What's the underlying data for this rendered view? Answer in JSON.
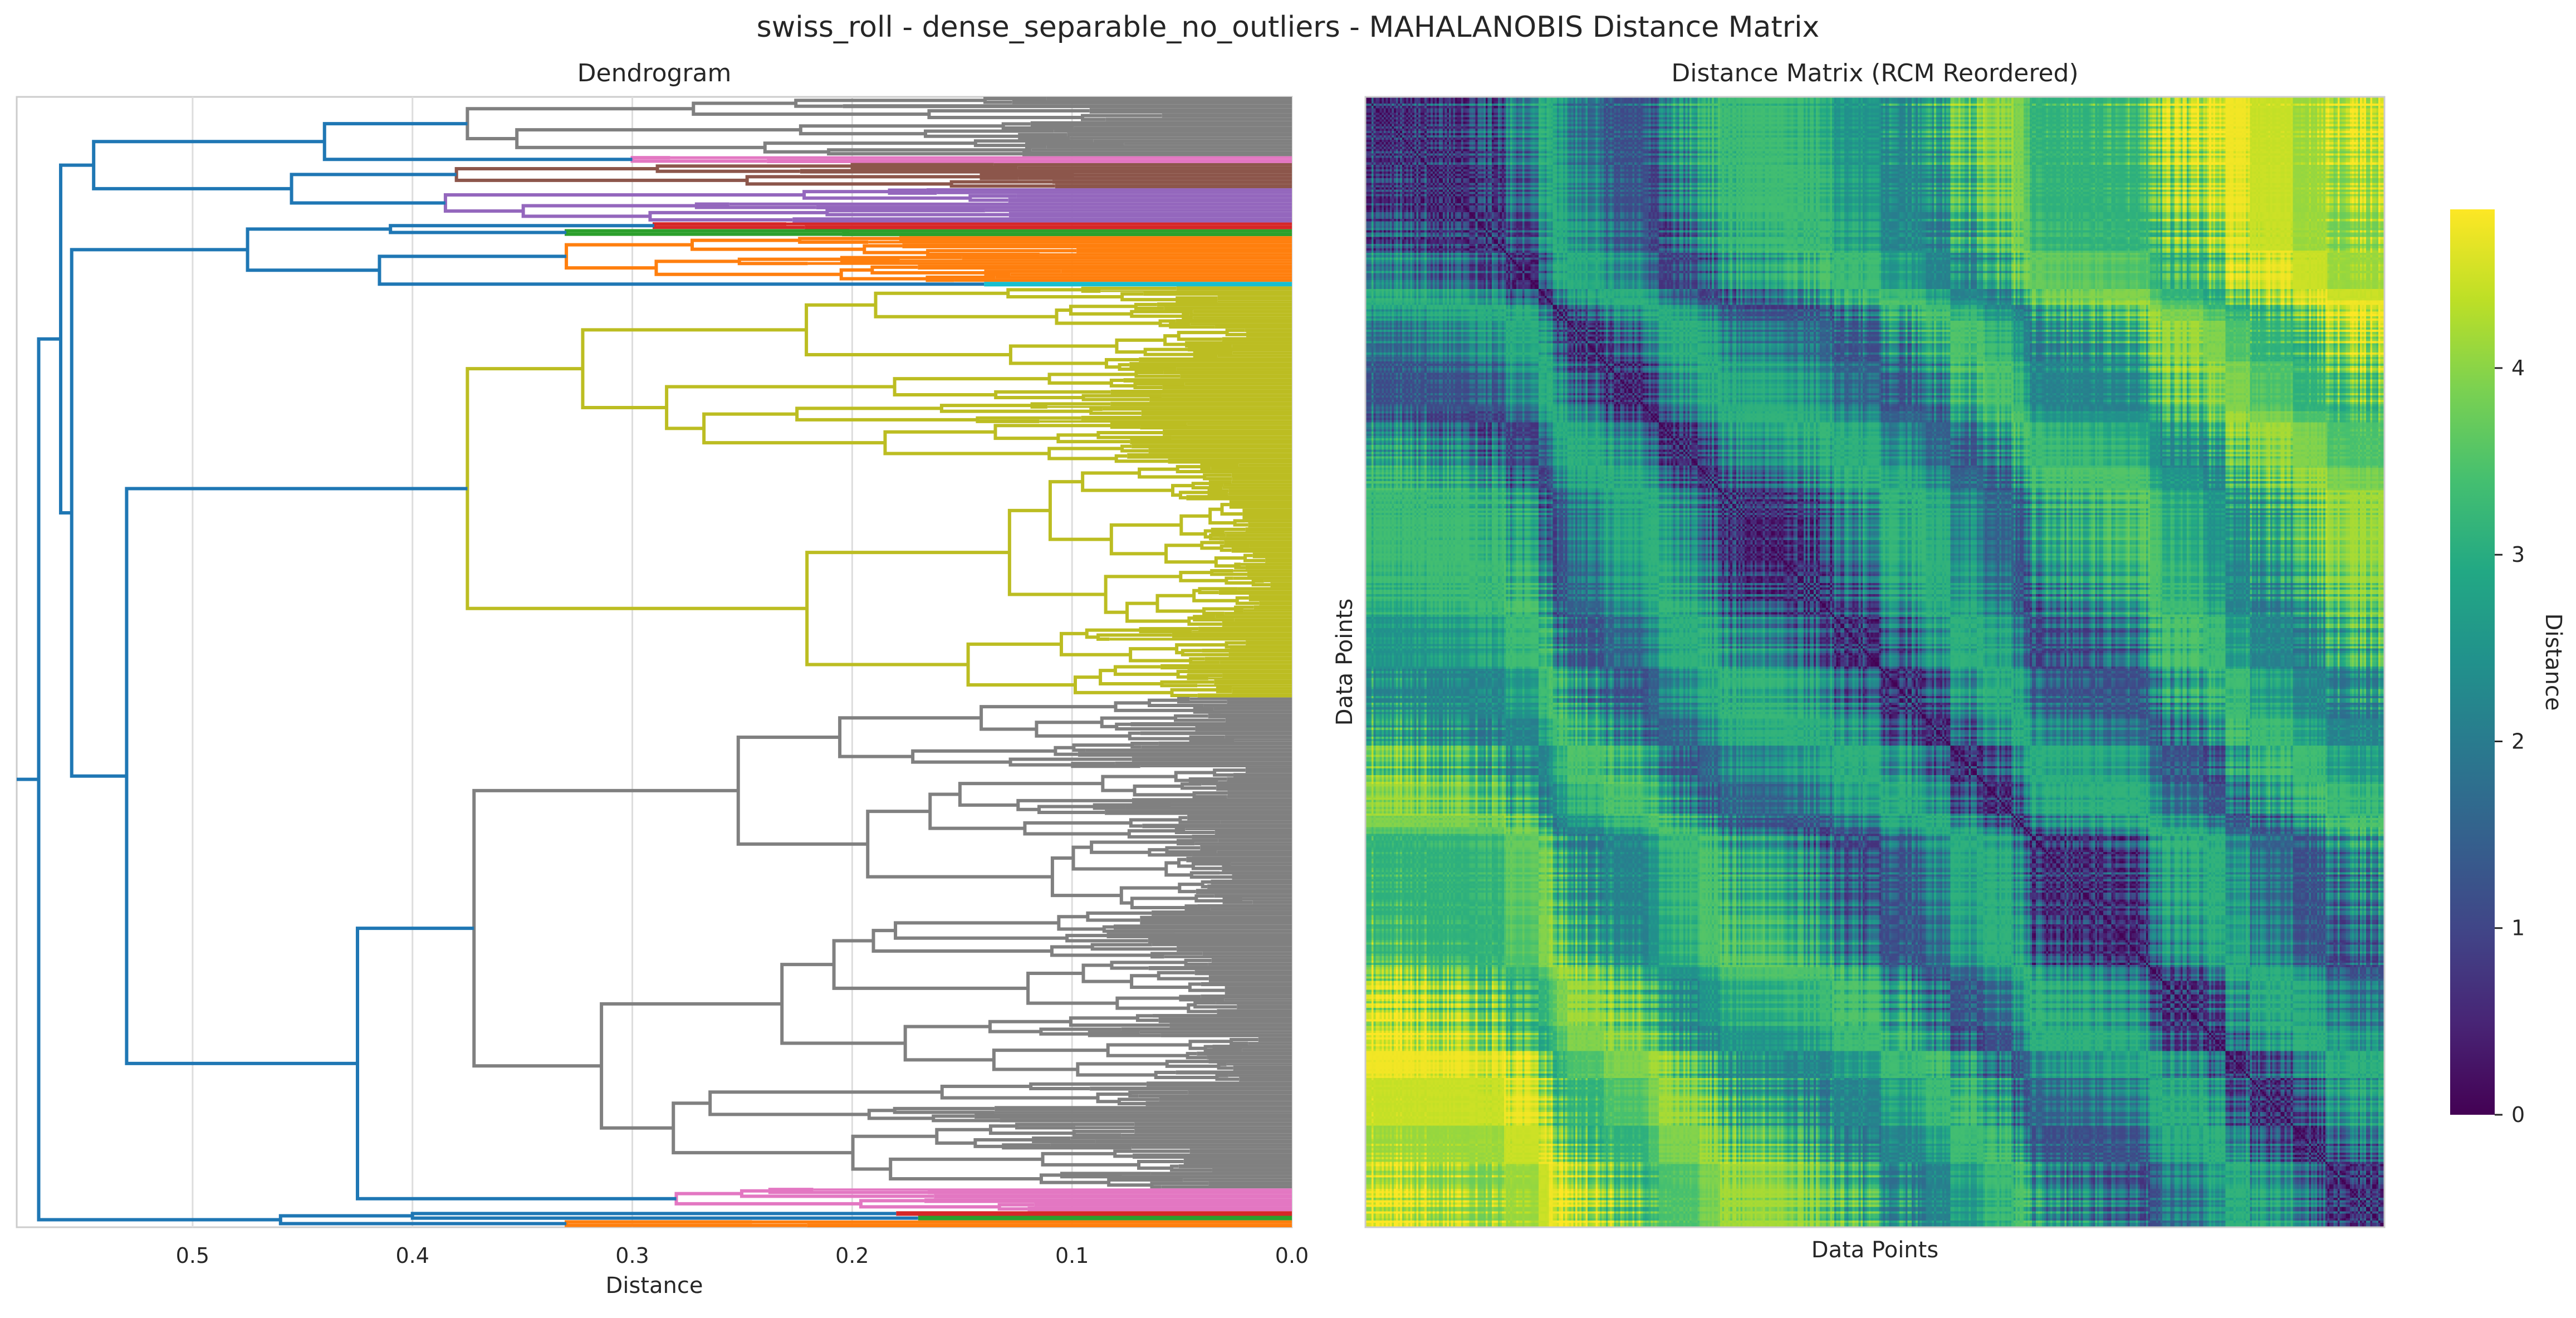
{
  "title": "swiss_roll - dense_separable_no_outliers - MAHALANOBIS Distance Matrix",
  "chart_data": [
    {
      "type": "dendrogram",
      "title": "Dendrogram",
      "xlabel": "Distance",
      "xlim": [
        0.58,
        0.0
      ],
      "xticks": [
        0.5,
        0.4,
        0.3,
        0.2,
        0.1,
        0.0
      ],
      "xtick_labels": [
        "0.5",
        "0.4",
        "0.3",
        "0.2",
        "0.1",
        "0.0"
      ],
      "grid": true,
      "top_merges": [
        {
          "distance": 0.56
        },
        {
          "distance": 0.555
        },
        {
          "distance": 0.545
        },
        {
          "distance": 0.53
        },
        {
          "distance": 0.475
        },
        {
          "distance": 0.46
        },
        {
          "distance": 0.455
        },
        {
          "distance": 0.44
        },
        {
          "distance": 0.425
        },
        {
          "distance": 0.415
        },
        {
          "distance": 0.41
        },
        {
          "distance": 0.4
        }
      ],
      "clusters": [
        {
          "color": "#808080",
          "order": 0,
          "share": 0.052,
          "height": 0.375
        },
        {
          "color": "#e377c2",
          "order": 1,
          "share": 0.006,
          "height": 0.3
        },
        {
          "color": "#8c564b",
          "order": 2,
          "share": 0.022,
          "height": 0.38
        },
        {
          "color": "#9467bd",
          "order": 3,
          "share": 0.03,
          "height": 0.385
        },
        {
          "color": "#d62728",
          "order": 4,
          "share": 0.006,
          "height": 0.29
        },
        {
          "color": "#2ca02c",
          "order": 5,
          "share": 0.006,
          "height": 0.33
        },
        {
          "color": "#ff7f0e",
          "order": 6,
          "share": 0.04,
          "height": 0.33
        },
        {
          "color": "#17becf",
          "order": 7,
          "share": 0.004,
          "height": 0.14
        },
        {
          "color": "#bcbd22",
          "order": 8,
          "share": 0.36,
          "height": 0.375
        },
        {
          "color": "#808080",
          "order": 9,
          "share": 0.43,
          "height": 0.372
        },
        {
          "color": "#e377c2",
          "order": 10,
          "share": 0.02,
          "height": 0.28
        },
        {
          "color": "#d62728",
          "order": 11,
          "share": 0.004,
          "height": 0.18
        },
        {
          "color": "#2ca02c",
          "order": 12,
          "share": 0.004,
          "height": 0.17
        },
        {
          "color": "#ff7f0e",
          "order": 13,
          "share": 0.006,
          "height": 0.33
        }
      ],
      "link_color_above_threshold": "#1f77b4"
    },
    {
      "type": "heatmap",
      "title": "Distance Matrix (RCM Reordered)",
      "xlabel": "Data Points",
      "ylabel": "Data Points",
      "colormap": "viridis",
      "colorbar": {
        "label": "Distance",
        "range": [
          0,
          4.85
        ],
        "ticks": [
          0,
          1,
          2,
          3,
          4
        ],
        "tick_labels": [
          "0",
          "1",
          "2",
          "3",
          "4"
        ]
      },
      "n_points": 500,
      "diagonal_value": 0,
      "pattern": "block-structured, low values near diagonal, high values in far corners"
    }
  ]
}
